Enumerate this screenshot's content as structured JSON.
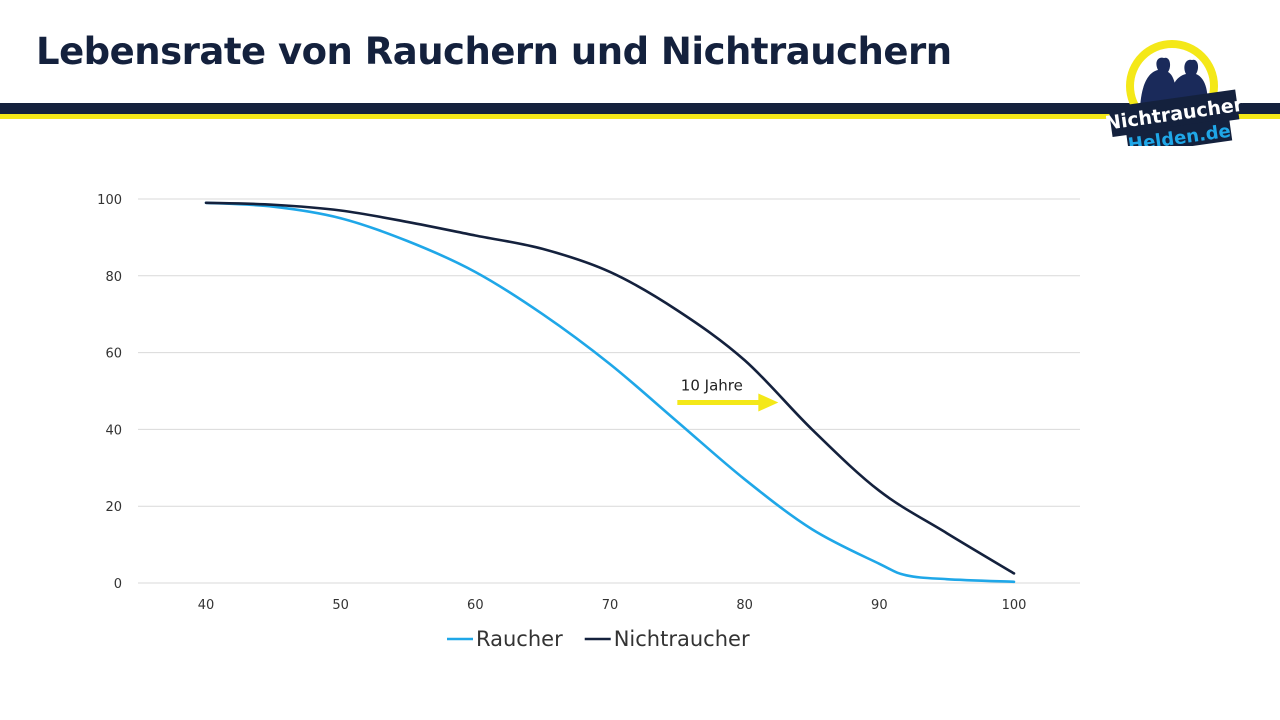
{
  "slide": {
    "title": "Lebensrate von Rauchern und Nichtrauchern"
  },
  "logo": {
    "line1": "Nichtraucher",
    "line2": "Helden.de"
  },
  "colors": {
    "smoker": "#1fa7e8",
    "nonsmoker": "#14213d",
    "accent": "#f4e818",
    "grid": "#d9d9d9"
  },
  "chart_data": {
    "type": "line",
    "title": "",
    "xlabel": "",
    "ylabel": "",
    "xlim": [
      40,
      100
    ],
    "ylim": [
      0,
      100
    ],
    "x_ticks": [
      "40",
      "50",
      "60",
      "70",
      "80",
      "90",
      "100"
    ],
    "y_ticks": [
      "0",
      "20",
      "40",
      "60",
      "80",
      "100"
    ],
    "grid": "horizontal",
    "legend_position": "bottom",
    "series": [
      {
        "name": "Raucher",
        "color": "#1fa7e8",
        "x": [
          40,
          45,
          50,
          55,
          60,
          65,
          70,
          75,
          80,
          85,
          90,
          92,
          95,
          100
        ],
        "y": [
          99,
          98,
          95,
          89,
          81,
          70,
          57,
          42,
          27,
          14,
          5,
          2,
          1,
          0.3
        ]
      },
      {
        "name": "Nichtraucher",
        "color": "#14213d",
        "x": [
          40,
          45,
          50,
          55,
          60,
          65,
          70,
          75,
          80,
          85,
          90,
          95,
          100
        ],
        "y": [
          99,
          98.5,
          97,
          94,
          90.5,
          87,
          81,
          71,
          58,
          40,
          24,
          13,
          2.5
        ]
      }
    ],
    "annotations": [
      {
        "text": "10 Jahre",
        "type": "arrow",
        "from": [
          75,
          47
        ],
        "to": [
          82.5,
          47
        ]
      }
    ]
  }
}
